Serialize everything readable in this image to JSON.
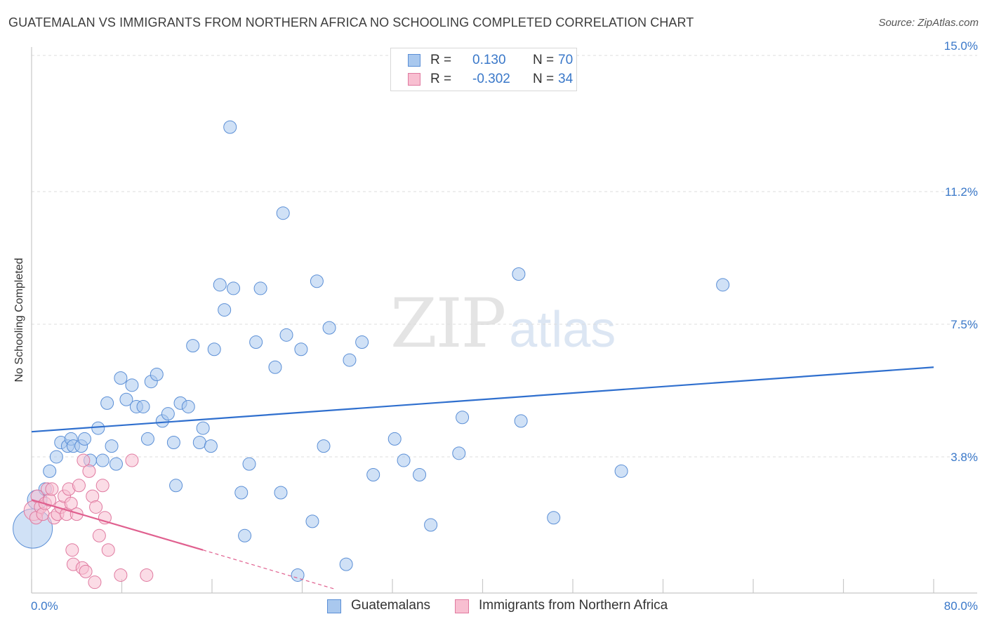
{
  "title": "GUATEMALAN VS IMMIGRANTS FROM NORTHERN AFRICA NO SCHOOLING COMPLETED CORRELATION CHART",
  "source": "Source: ZipAtlas.com",
  "watermark": {
    "zip": "ZIP",
    "atlas": "atlas"
  },
  "stats": [
    {
      "r_label": "R =",
      "r_value": "0.130",
      "n_label": "N =",
      "n_value": "70",
      "color": "#a9c8ee",
      "border": "#5b8fd6"
    },
    {
      "r_label": "R =",
      "r_value": "-0.302",
      "n_label": "N =",
      "n_value": "34",
      "color": "#f8bfd1",
      "border": "#e07aa0"
    }
  ],
  "legend": [
    {
      "label": "Guatemalans",
      "color": "#a9c8ee",
      "border": "#5b8fd6"
    },
    {
      "label": "Immigrants from Northern Africa",
      "color": "#f8bfd1",
      "border": "#e07aa0"
    }
  ],
  "chart_data": {
    "type": "scatter",
    "title": "GUATEMALAN VS IMMIGRANTS FROM NORTHERN AFRICA NO SCHOOLING COMPLETED CORRELATION CHART",
    "xlabel": "",
    "ylabel": "No Schooling Completed",
    "xlim": [
      0,
      80
    ],
    "ylim": [
      0,
      15
    ],
    "x_tick_labels": [
      "0.0%",
      "80.0%"
    ],
    "y_ticks": [
      3.8,
      7.5,
      11.2,
      15.0
    ],
    "y_tick_labels": [
      "3.8%",
      "7.5%",
      "11.2%",
      "15.0%"
    ],
    "grid": true,
    "legend_position": "bottom-center",
    "series": [
      {
        "name": "Guatemalans",
        "color": "#a9c8ee",
        "stroke": "#5b8fd6",
        "line_color": "#2f6fce",
        "trend": [
          [
            0,
            4.5
          ],
          [
            80,
            6.3
          ]
        ],
        "points": [
          [
            0.1,
            1.8,
            28
          ],
          [
            0.5,
            2.6,
            14
          ],
          [
            1.2,
            2.9,
            10
          ],
          [
            1.6,
            3.4,
            10
          ],
          [
            2.2,
            3.8,
            10
          ],
          [
            2.6,
            4.2,
            10
          ],
          [
            3.2,
            4.1,
            10
          ],
          [
            3.5,
            4.3,
            10
          ],
          [
            3.7,
            4.1,
            10
          ],
          [
            4.4,
            4.1,
            10
          ],
          [
            4.7,
            4.3,
            10
          ],
          [
            5.2,
            3.7,
            10
          ],
          [
            5.9,
            4.6,
            10
          ],
          [
            6.3,
            3.7,
            10
          ],
          [
            6.7,
            5.3,
            10
          ],
          [
            7.1,
            4.1,
            10
          ],
          [
            7.5,
            3.6,
            10
          ],
          [
            7.9,
            6.0,
            10
          ],
          [
            8.4,
            5.4,
            10
          ],
          [
            8.9,
            5.8,
            10
          ],
          [
            9.3,
            5.2,
            10
          ],
          [
            9.9,
            5.2,
            10
          ],
          [
            10.3,
            4.3,
            10
          ],
          [
            10.6,
            5.9,
            10
          ],
          [
            11.1,
            6.1,
            10
          ],
          [
            11.6,
            4.8,
            10
          ],
          [
            12.1,
            5.0,
            10
          ],
          [
            12.6,
            4.2,
            10
          ],
          [
            12.8,
            3.0,
            10
          ],
          [
            13.2,
            5.3,
            10
          ],
          [
            13.9,
            5.2,
            10
          ],
          [
            14.3,
            6.9,
            10
          ],
          [
            14.9,
            4.2,
            10
          ],
          [
            15.2,
            4.6,
            10
          ],
          [
            15.9,
            4.1,
            10
          ],
          [
            16.2,
            6.8,
            10
          ],
          [
            16.7,
            8.6,
            10
          ],
          [
            17.1,
            7.9,
            10
          ],
          [
            17.6,
            13.0,
            10
          ],
          [
            17.9,
            8.5,
            10
          ],
          [
            18.6,
            2.8,
            10
          ],
          [
            18.9,
            1.6,
            10
          ],
          [
            19.3,
            3.6,
            10
          ],
          [
            19.9,
            7.0,
            10
          ],
          [
            20.3,
            8.5,
            10
          ],
          [
            21.6,
            6.3,
            10
          ],
          [
            22.1,
            2.8,
            10
          ],
          [
            22.3,
            10.6,
            10
          ],
          [
            22.6,
            7.2,
            10
          ],
          [
            23.6,
            0.5,
            10
          ],
          [
            23.9,
            6.8,
            10
          ],
          [
            24.9,
            2.0,
            10
          ],
          [
            25.3,
            8.7,
            10
          ],
          [
            25.9,
            4.1,
            10
          ],
          [
            26.4,
            7.4,
            10
          ],
          [
            27.9,
            0.8,
            10
          ],
          [
            28.2,
            6.5,
            10
          ],
          [
            29.3,
            7.0,
            10
          ],
          [
            30.3,
            3.3,
            10
          ],
          [
            32.2,
            4.3,
            10
          ],
          [
            33.0,
            3.7,
            10
          ],
          [
            34.4,
            3.3,
            10
          ],
          [
            35.4,
            1.9,
            10
          ],
          [
            37.9,
            3.9,
            10
          ],
          [
            38.2,
            4.9,
            10
          ],
          [
            43.2,
            8.9,
            10
          ],
          [
            43.4,
            4.8,
            10
          ],
          [
            46.3,
            2.1,
            10
          ],
          [
            52.3,
            3.4,
            10
          ],
          [
            61.3,
            8.6,
            10
          ]
        ]
      },
      {
        "name": "Immigrants from Northern Africa",
        "color": "#f8bfd1",
        "stroke": "#e07aa0",
        "line_color": "#e0608f",
        "trend": [
          [
            0,
            2.6
          ],
          [
            15.2,
            1.2
          ]
        ],
        "trend_extension": [
          [
            15.2,
            1.2
          ],
          [
            27,
            0.1
          ]
        ],
        "points": [
          [
            0.2,
            2.3,
            14
          ],
          [
            0.4,
            2.1,
            10
          ],
          [
            0.5,
            2.7,
            10
          ],
          [
            0.8,
            2.4,
            10
          ],
          [
            1.0,
            2.2,
            10
          ],
          [
            1.2,
            2.5,
            10
          ],
          [
            1.4,
            2.9,
            10
          ],
          [
            1.6,
            2.6,
            10
          ],
          [
            1.8,
            2.9,
            10
          ],
          [
            2.0,
            2.1,
            10
          ],
          [
            2.3,
            2.2,
            10
          ],
          [
            2.6,
            2.4,
            10
          ],
          [
            2.9,
            2.7,
            10
          ],
          [
            3.1,
            2.2,
            10
          ],
          [
            3.3,
            2.9,
            10
          ],
          [
            3.5,
            2.5,
            10
          ],
          [
            3.6,
            1.2,
            10
          ],
          [
            3.7,
            0.8,
            10
          ],
          [
            4.0,
            2.2,
            10
          ],
          [
            4.2,
            3.0,
            10
          ],
          [
            4.5,
            0.7,
            10
          ],
          [
            4.6,
            3.7,
            10
          ],
          [
            4.8,
            0.6,
            10
          ],
          [
            5.1,
            3.4,
            10
          ],
          [
            5.4,
            2.7,
            10
          ],
          [
            5.6,
            0.3,
            10
          ],
          [
            5.7,
            2.4,
            10
          ],
          [
            6.0,
            1.6,
            10
          ],
          [
            6.3,
            3.0,
            10
          ],
          [
            6.5,
            2.1,
            10
          ],
          [
            6.8,
            1.2,
            10
          ],
          [
            7.9,
            0.5,
            10
          ],
          [
            8.9,
            3.7,
            10
          ],
          [
            10.2,
            0.5,
            10
          ]
        ]
      }
    ]
  }
}
